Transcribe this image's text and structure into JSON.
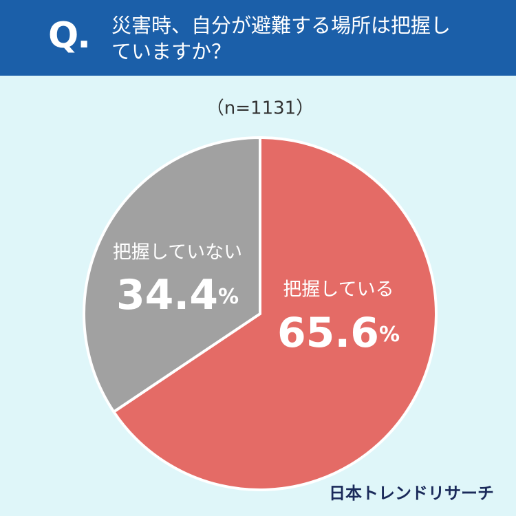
{
  "chart_data": {
    "type": "pie",
    "question_label": "Q.",
    "title": "災害時、自分が避難する場所は把握していますか？",
    "subtitle": "（n=1131）",
    "categories": [
      "把握している",
      "把握していない"
    ],
    "values": [
      65.6,
      34.4
    ],
    "value_labels": [
      "65.6%",
      "34.4%"
    ],
    "colors": [
      "#e46b66",
      "#a1a1a1"
    ],
    "start_angle": 0,
    "direction": "clockwise",
    "source": "日本トレンドリサーチ"
  }
}
